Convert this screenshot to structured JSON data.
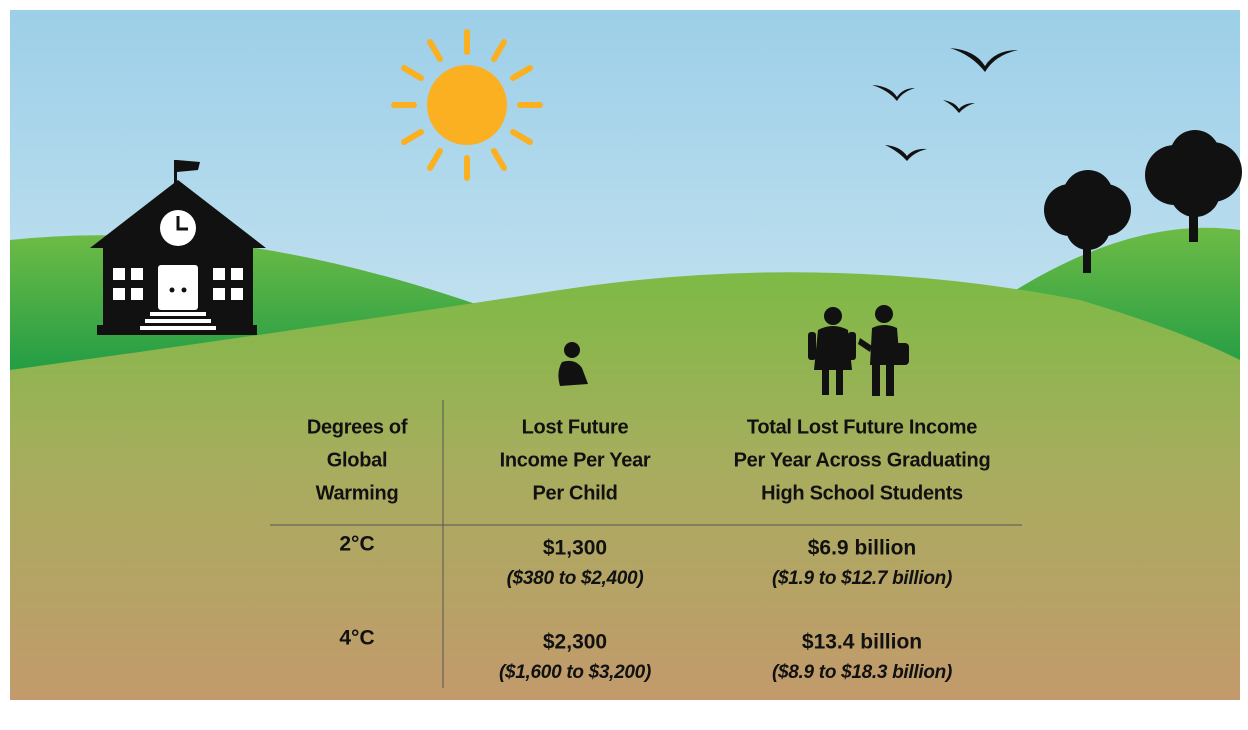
{
  "table": {
    "headers": [
      [
        "Degrees of",
        "Global",
        "Warming"
      ],
      [
        "Lost Future",
        "Income Per Year",
        "Per Child"
      ],
      [
        "Total Lost Future Income",
        "Per Year Across Graduating",
        "High School Students"
      ]
    ],
    "rows": [
      [
        "2°C",
        [
          "$1,300",
          "($380 to $2,400)"
        ],
        [
          "$6.9 billion",
          "($1.9 to $12.7 billion)"
        ]
      ],
      [
        "4°C",
        [
          "$2,300",
          "($1,600 to $3,200)"
        ],
        [
          "$13.4 billion",
          "($8.9 to $18.3 billion)"
        ]
      ]
    ]
  }
}
